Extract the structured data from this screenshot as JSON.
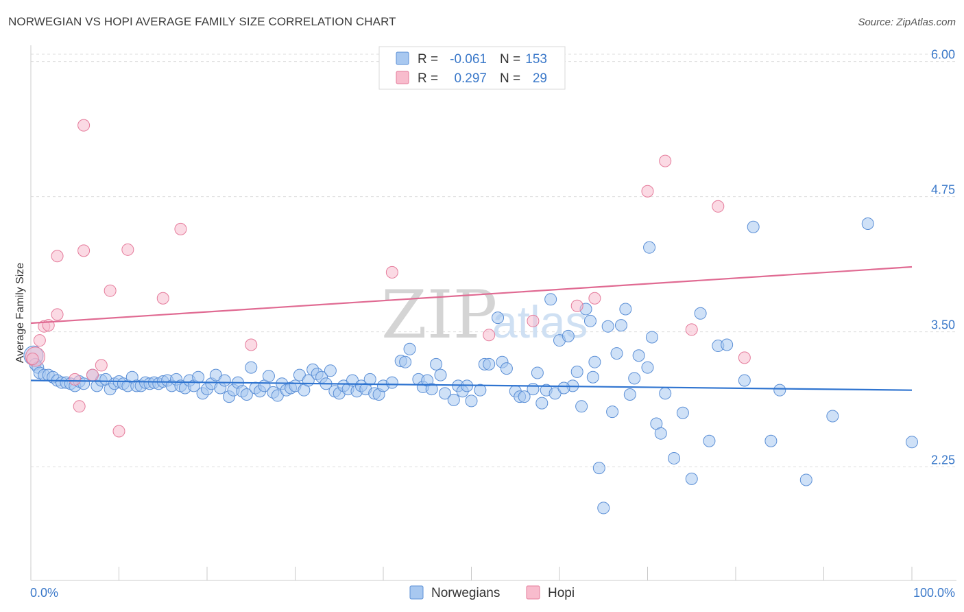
{
  "header": {
    "title": "NORWEGIAN VS HOPI AVERAGE FAMILY SIZE CORRELATION CHART",
    "source": "Source: ZipAtlas.com"
  },
  "watermark": {
    "zip": "ZIP",
    "atlas": "atlas"
  },
  "stats_legend": [
    {
      "r_label": "R =",
      "r_value": "-0.061",
      "n_label": "N =",
      "n_value": "153",
      "color": "#a8c8f0",
      "edge": "#5b8fd6"
    },
    {
      "r_label": "R =",
      "r_value": "0.297",
      "n_label": "N =",
      "n_value": "29",
      "color": "#f8bccd",
      "edge": "#e57b9b"
    }
  ],
  "chart_data": {
    "type": "scatter",
    "title": "NORWEGIAN VS HOPI AVERAGE FAMILY SIZE CORRELATION CHART",
    "xlabel": "",
    "ylabel": "Average Family Size",
    "xlim": [
      0,
      100
    ],
    "ylim": [
      1.2,
      6.15
    ],
    "x_tick_labels": [
      "0.0%",
      "100.0%"
    ],
    "y_ticks": [
      2.25,
      3.5,
      4.75,
      6.0
    ],
    "y_tick_labels": [
      "2.25",
      "3.50",
      "4.75",
      "6.00"
    ],
    "series": [
      {
        "name": "Norwegians",
        "color": "#a8c8f0",
        "edge": "#5b8fd6",
        "trend": {
          "x": [
            0,
            100
          ],
          "y": [
            3.05,
            2.96
          ],
          "color": "#2f74d0"
        },
        "points": [
          [
            0.3,
            3.28
          ],
          [
            0.5,
            3.2
          ],
          [
            0.8,
            3.17
          ],
          [
            1.0,
            3.12
          ],
          [
            1.5,
            3.1
          ],
          [
            2,
            3.1
          ],
          [
            2.5,
            3.08
          ],
          [
            3,
            3.05
          ],
          [
            3.5,
            3.03
          ],
          [
            4,
            3.03
          ],
          [
            4.5,
            3.02
          ],
          [
            5,
            3.0
          ],
          [
            5.5,
            3.04
          ],
          [
            6,
            3.02
          ],
          [
            7,
            3.1
          ],
          [
            7.5,
            3.0
          ],
          [
            8,
            3.05
          ],
          [
            8.5,
            3.06
          ],
          [
            9,
            2.97
          ],
          [
            9.5,
            3.02
          ],
          [
            10,
            3.04
          ],
          [
            10.5,
            3.02
          ],
          [
            11,
            3.0
          ],
          [
            11.5,
            3.08
          ],
          [
            12,
            3.0
          ],
          [
            12.5,
            3.0
          ],
          [
            13,
            3.03
          ],
          [
            13.5,
            3.02
          ],
          [
            14,
            3.03
          ],
          [
            14.5,
            3.02
          ],
          [
            15,
            3.04
          ],
          [
            15.5,
            3.05
          ],
          [
            16,
            3.0
          ],
          [
            16.5,
            3.06
          ],
          [
            17,
            3.0
          ],
          [
            17.5,
            2.98
          ],
          [
            18,
            3.05
          ],
          [
            18.5,
            3.0
          ],
          [
            19,
            3.08
          ],
          [
            19.5,
            2.93
          ],
          [
            20,
            2.97
          ],
          [
            20.5,
            3.02
          ],
          [
            21,
            3.1
          ],
          [
            21.5,
            2.98
          ],
          [
            22,
            3.05
          ],
          [
            22.5,
            2.9
          ],
          [
            23,
            2.96
          ],
          [
            23.5,
            3.03
          ],
          [
            24,
            2.95
          ],
          [
            24.5,
            2.92
          ],
          [
            25,
            3.17
          ],
          [
            25.5,
            2.98
          ],
          [
            26,
            2.95
          ],
          [
            26.5,
            3.0
          ],
          [
            27,
            3.09
          ],
          [
            27.5,
            2.94
          ],
          [
            28,
            2.91
          ],
          [
            28.5,
            3.02
          ],
          [
            29,
            2.96
          ],
          [
            29.5,
            2.98
          ],
          [
            30,
            3.0
          ],
          [
            30.5,
            3.1
          ],
          [
            31,
            2.96
          ],
          [
            31.5,
            3.05
          ],
          [
            32,
            3.15
          ],
          [
            32.5,
            3.11
          ],
          [
            33,
            3.08
          ],
          [
            33.5,
            3.02
          ],
          [
            34,
            3.14
          ],
          [
            34.5,
            2.95
          ],
          [
            35,
            2.93
          ],
          [
            35.5,
            3.0
          ],
          [
            36,
            2.97
          ],
          [
            36.5,
            3.05
          ],
          [
            37,
            2.95
          ],
          [
            37.5,
            3.0
          ],
          [
            38,
            2.97
          ],
          [
            38.5,
            3.06
          ],
          [
            39,
            2.93
          ],
          [
            39.5,
            2.92
          ],
          [
            40,
            3.0
          ],
          [
            41,
            3.03
          ],
          [
            42,
            3.23
          ],
          [
            42.5,
            3.22
          ],
          [
            43,
            3.34
          ],
          [
            44,
            3.06
          ],
          [
            44.5,
            2.99
          ],
          [
            45,
            3.05
          ],
          [
            45.5,
            2.97
          ],
          [
            46,
            3.2
          ],
          [
            46.5,
            3.1
          ],
          [
            47,
            2.93
          ],
          [
            48,
            2.87
          ],
          [
            48.5,
            3.0
          ],
          [
            49,
            2.95
          ],
          [
            49.5,
            3.0
          ],
          [
            50,
            2.86
          ],
          [
            51,
            2.96
          ],
          [
            51.5,
            3.2
          ],
          [
            52,
            3.2
          ],
          [
            53,
            3.63
          ],
          [
            53.5,
            3.22
          ],
          [
            54,
            3.16
          ],
          [
            55,
            2.95
          ],
          [
            55.5,
            2.9
          ],
          [
            56,
            2.9
          ],
          [
            57,
            2.97
          ],
          [
            57.5,
            3.12
          ],
          [
            58,
            2.84
          ],
          [
            58.5,
            2.96
          ],
          [
            59,
            3.8
          ],
          [
            59.5,
            2.93
          ],
          [
            60,
            3.42
          ],
          [
            61,
            3.46
          ],
          [
            61.5,
            3.0
          ],
          [
            62,
            3.13
          ],
          [
            62.5,
            2.81
          ],
          [
            63,
            3.71
          ],
          [
            63.5,
            3.6
          ],
          [
            64,
            3.22
          ],
          [
            64.5,
            2.24
          ],
          [
            65,
            1.87
          ],
          [
            66,
            2.76
          ],
          [
            66.5,
            3.3
          ],
          [
            67,
            3.56
          ],
          [
            67.5,
            3.71
          ],
          [
            68,
            2.92
          ],
          [
            68.5,
            3.07
          ],
          [
            69,
            3.28
          ],
          [
            70,
            3.17
          ],
          [
            70.5,
            3.45
          ],
          [
            71,
            2.65
          ],
          [
            71.5,
            2.56
          ],
          [
            72,
            2.93
          ],
          [
            73,
            2.33
          ],
          [
            74,
            2.75
          ],
          [
            75,
            2.14
          ],
          [
            76,
            3.67
          ],
          [
            77,
            2.49
          ],
          [
            78,
            3.37
          ],
          [
            81,
            3.05
          ],
          [
            84,
            2.49
          ],
          [
            85,
            2.96
          ],
          [
            88,
            2.13
          ],
          [
            91,
            2.72
          ],
          [
            95,
            4.5
          ],
          [
            100,
            2.48
          ],
          [
            82,
            4.47
          ],
          [
            70.2,
            4.28
          ],
          [
            79,
            3.38
          ],
          [
            65.5,
            3.55
          ],
          [
            63.8,
            3.08
          ],
          [
            60.5,
            2.98
          ]
        ]
      },
      {
        "name": "Hopi",
        "color": "#f8bccd",
        "edge": "#e57b9b",
        "trend": {
          "x": [
            0,
            100
          ],
          "y": [
            3.58,
            4.1
          ],
          "color": "#e06a92"
        },
        "points": [
          [
            0.5,
            3.27
          ],
          [
            1.0,
            3.42
          ],
          [
            1.5,
            3.55
          ],
          [
            2,
            3.56
          ],
          [
            3,
            3.66
          ],
          [
            3,
            4.2
          ],
          [
            5,
            3.06
          ],
          [
            5.5,
            2.81
          ],
          [
            6,
            4.25
          ],
          [
            6,
            5.41
          ],
          [
            7,
            3.1
          ],
          [
            8,
            3.19
          ],
          [
            9,
            3.88
          ],
          [
            10,
            2.58
          ],
          [
            11,
            4.26
          ],
          [
            15,
            3.81
          ],
          [
            17,
            4.45
          ],
          [
            25,
            3.38
          ],
          [
            41,
            4.05
          ],
          [
            52,
            3.47
          ],
          [
            57,
            3.6
          ],
          [
            62,
            3.74
          ],
          [
            64,
            3.81
          ],
          [
            70,
            4.8
          ],
          [
            72,
            5.08
          ],
          [
            75,
            3.52
          ],
          [
            78,
            4.66
          ],
          [
            81,
            3.26
          ],
          [
            0.2,
            3.25
          ]
        ]
      }
    ]
  },
  "bottom_legend": [
    {
      "label": "Norwegians",
      "color": "#a8c8f0",
      "edge": "#5b8fd6"
    },
    {
      "label": "Hopi",
      "color": "#f8bccd",
      "edge": "#e57b9b"
    }
  ]
}
